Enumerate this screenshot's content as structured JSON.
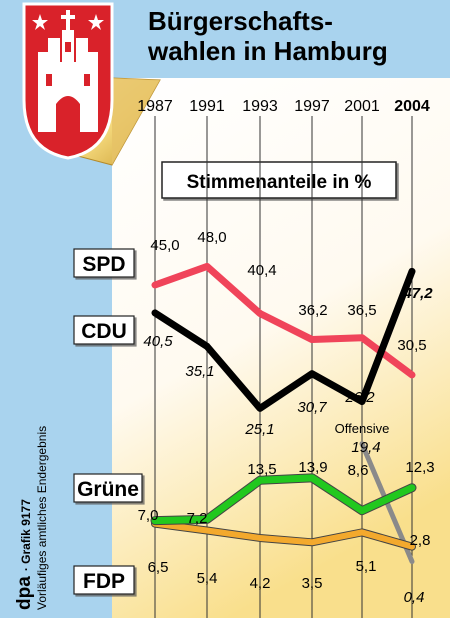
{
  "title": "Bürgerschafts-\nwahlen in Hamburg",
  "subtitle": "Stimmenanteile in %",
  "credit": {
    "agency": "dpa",
    "number": "· Grafik 9177",
    "note": "Vorläufiges amtliches Endergebnis"
  },
  "emblem": "hamburg-coat-of-arms",
  "annotation": {
    "label": "Offensive",
    "value": "19,4",
    "color": "#8a8a8a"
  },
  "chart_data": {
    "type": "line",
    "categories": [
      "1987",
      "1991",
      "1993",
      "1997",
      "2001",
      "2004"
    ],
    "highlight_category": "2004",
    "ylim": [
      0,
      50
    ],
    "series": [
      {
        "name": "SPD",
        "color": "#f0445a",
        "values": [
          45.0,
          48.0,
          40.4,
          36.2,
          36.5,
          30.5
        ],
        "labels": [
          "45,0",
          "48,0",
          "40,4",
          "36,2",
          "36,5",
          "30,5"
        ]
      },
      {
        "name": "CDU",
        "color": "#000000",
        "values": [
          40.5,
          35.1,
          25.1,
          30.7,
          26.2,
          47.2
        ],
        "labels": [
          "40,5",
          "35,1",
          "25,1",
          "30,7",
          "26,2",
          "47,2"
        ]
      },
      {
        "name": "Grüne",
        "color": "#22c81e",
        "values": [
          7.0,
          7.2,
          13.5,
          13.9,
          8.6,
          12.3
        ],
        "labels": [
          "7,0",
          "7,2",
          "13,5",
          "13,9",
          "8,6",
          "12,3"
        ]
      },
      {
        "name": "FDP",
        "color": "#f3a92d",
        "values": [
          6.5,
          5.4,
          4.2,
          3.5,
          5.1,
          2.8
        ],
        "labels": [
          "6,5",
          "5,4",
          "4,2",
          "3,5",
          "5,1",
          "2,8"
        ]
      },
      {
        "name": "Offensive",
        "color": "#8a8a8a",
        "x": [
          "2001",
          "2004"
        ],
        "values": [
          19.4,
          0.4
        ],
        "labels": [
          "19,4",
          "0,4"
        ]
      }
    ]
  }
}
